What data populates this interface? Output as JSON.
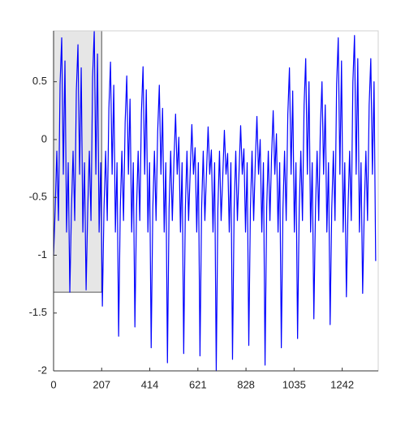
{
  "chart_data": {
    "type": "line",
    "color": "#0000ff",
    "xlim": [
      0,
      1397
    ],
    "ylim": [
      -2,
      0.94
    ],
    "xticks": [
      0,
      207,
      414,
      621,
      828,
      1035,
      1242
    ],
    "yticks": [
      -2,
      -1.5,
      -1,
      -0.5,
      0,
      0.5
    ],
    "highlight": {
      "x": [
        0,
        207
      ],
      "y": [
        -1.32,
        0.94
      ],
      "color": "#e6e6e6"
    },
    "x": [
      0,
      7,
      14,
      21,
      28,
      35,
      42,
      49,
      56,
      63,
      70,
      77,
      84,
      91,
      98,
      105,
      112,
      119,
      126,
      133,
      140,
      147,
      154,
      161,
      168,
      175,
      182,
      189,
      196,
      203,
      210,
      217,
      224,
      231,
      238,
      245,
      252,
      259,
      266,
      273,
      280,
      287,
      294,
      301,
      308,
      315,
      322,
      329,
      336,
      343,
      350,
      357,
      364,
      371,
      378,
      385,
      392,
      399,
      406,
      413,
      420,
      427,
      434,
      441,
      448,
      455,
      462,
      469,
      476,
      483,
      490,
      497,
      504,
      511,
      518,
      525,
      532,
      539,
      546,
      553,
      560,
      567,
      574,
      581,
      588,
      595,
      602,
      609,
      616,
      623,
      630,
      637,
      644,
      651,
      658,
      665,
      672,
      679,
      686,
      693,
      700,
      707,
      714,
      721,
      728,
      735,
      742,
      749,
      756,
      763,
      770,
      777,
      784,
      791,
      798,
      805,
      812,
      819,
      826,
      833,
      840,
      847,
      854,
      861,
      868,
      875,
      882,
      889,
      896,
      903,
      910,
      917,
      924,
      931,
      938,
      945,
      952,
      959,
      966,
      973,
      980,
      987,
      994,
      1001,
      1008,
      1015,
      1022,
      1029,
      1036,
      1043,
      1050,
      1057,
      1064,
      1071,
      1078,
      1085,
      1092,
      1099,
      1106,
      1113,
      1120,
      1127,
      1134,
      1141,
      1148,
      1155,
      1162,
      1169,
      1176,
      1183,
      1190,
      1197,
      1204,
      1211,
      1218,
      1225,
      1232,
      1239,
      1246,
      1253,
      1260,
      1267,
      1274,
      1281,
      1288,
      1295,
      1302,
      1309,
      1316,
      1323,
      1330,
      1337,
      1344,
      1351,
      1358,
      1365,
      1372,
      1379,
      1386
    ],
    "values": [
      -1.0,
      -0.6,
      -0.1,
      -0.7,
      0.48,
      0.88,
      -0.3,
      0.68,
      -0.8,
      -0.2,
      -1.32,
      -0.6,
      -0.1,
      -0.7,
      0.42,
      0.82,
      -0.3,
      0.62,
      -0.8,
      -0.2,
      -1.3,
      -0.6,
      -0.1,
      -0.7,
      0.54,
      0.94,
      -0.3,
      0.74,
      -0.8,
      -0.2,
      -1.44,
      -0.6,
      -0.1,
      -0.7,
      0.27,
      0.67,
      -0.3,
      0.47,
      -0.8,
      -0.2,
      -1.7,
      -0.6,
      -0.1,
      -0.7,
      0.15,
      0.55,
      -0.3,
      0.35,
      -0.8,
      -0.2,
      -1.62,
      -0.6,
      -0.1,
      -0.7,
      0.23,
      0.63,
      -0.3,
      0.43,
      -0.8,
      -0.2,
      -1.8,
      -0.6,
      -0.1,
      -0.7,
      0.07,
      0.47,
      -0.3,
      0.27,
      -0.8,
      -0.2,
      -1.93,
      -0.6,
      -0.1,
      -0.7,
      -0.18,
      0.22,
      -0.3,
      0.02,
      -0.8,
      -0.2,
      -1.85,
      -0.6,
      -0.1,
      -0.7,
      -0.27,
      0.13,
      -0.3,
      -0.07,
      -0.8,
      -0.2,
      -1.87,
      -0.6,
      -0.1,
      -0.7,
      -0.29,
      0.11,
      -0.3,
      -0.09,
      -0.8,
      -0.2,
      -2.0,
      -0.6,
      -0.1,
      -0.7,
      -0.32,
      0.08,
      -0.3,
      -0.12,
      -0.8,
      -0.2,
      -1.9,
      -0.6,
      -0.1,
      -0.7,
      -0.28,
      0.12,
      -0.3,
      -0.08,
      -0.8,
      -0.2,
      -1.78,
      -0.6,
      -0.1,
      -0.7,
      -0.2,
      0.2,
      -0.3,
      0,
      -0.8,
      -0.2,
      -1.95,
      -0.6,
      -0.1,
      -0.7,
      -0.15,
      0.25,
      -0.3,
      0.05,
      -0.8,
      -0.2,
      -1.8,
      -0.6,
      -0.1,
      -0.7,
      0.22,
      0.62,
      -0.3,
      0.42,
      -0.8,
      -0.2,
      -1.72,
      -0.6,
      -0.1,
      -0.7,
      0.3,
      0.7,
      -0.3,
      0.5,
      -0.8,
      -0.2,
      -1.55,
      -0.6,
      -0.1,
      -0.7,
      0.1,
      0.5,
      -0.3,
      0.3,
      -0.8,
      -0.2,
      -1.6,
      -0.6,
      -0.1,
      -0.7,
      0.48,
      0.88,
      -0.3,
      0.68,
      -0.8,
      -0.2,
      -1.36,
      -0.6,
      -0.1,
      -0.7,
      0.5,
      0.9,
      -0.3,
      0.7,
      -0.8,
      -0.2,
      -1.33,
      -0.6,
      -0.1,
      -0.7,
      0.3,
      0.7,
      -0.3,
      0.5,
      -1.05
    ]
  }
}
